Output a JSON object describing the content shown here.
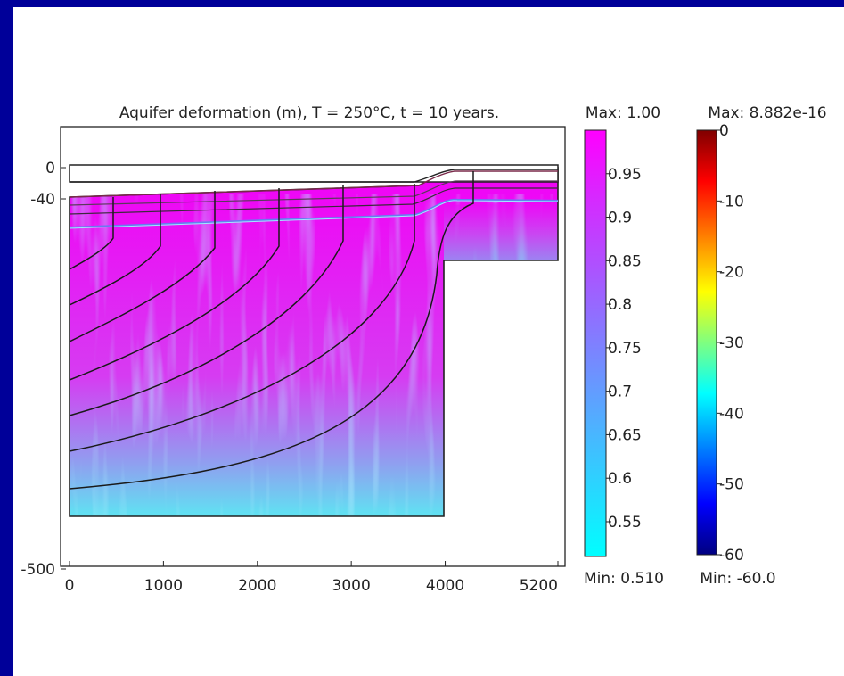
{
  "chart_data": {
    "type": "heatmap",
    "title": "Aquifer deformation (m), T = 250°C, t = 10 years.",
    "xlabel": "",
    "ylabel": "",
    "xlim": [
      0,
      5200
    ],
    "ylim": [
      -500,
      0
    ],
    "x_ticks": [
      "0",
      "1000",
      "2000",
      "3000",
      "4000",
      "5200"
    ],
    "y_ticks": [
      "0",
      "-40",
      "-500"
    ],
    "color_scales": [
      {
        "name": "surface",
        "max_label": "Max: 1.00",
        "min_label": "Min: 0.510",
        "range": [
          0.51,
          1.0
        ],
        "ticks": [
          "0.95",
          "0.9",
          "0.85",
          "0.8",
          "0.75",
          "0.7",
          "0.65",
          "0.6",
          "0.55"
        ],
        "colors": [
          "#00ffff",
          "#ff00ff"
        ]
      },
      {
        "name": "contour",
        "max_label": "Max: 8.882e-16",
        "min_label": "Min: -60.0",
        "range": [
          -60,
          0
        ],
        "ticks": [
          "0",
          "-10",
          "-20",
          "-30",
          "-40",
          "-50",
          "-60"
        ],
        "colors": [
          "#000080",
          "#0000ff",
          "#00ffff",
          "#ffff00",
          "#ff0000",
          "#800000"
        ]
      }
    ],
    "grid": false,
    "legend": "right"
  }
}
